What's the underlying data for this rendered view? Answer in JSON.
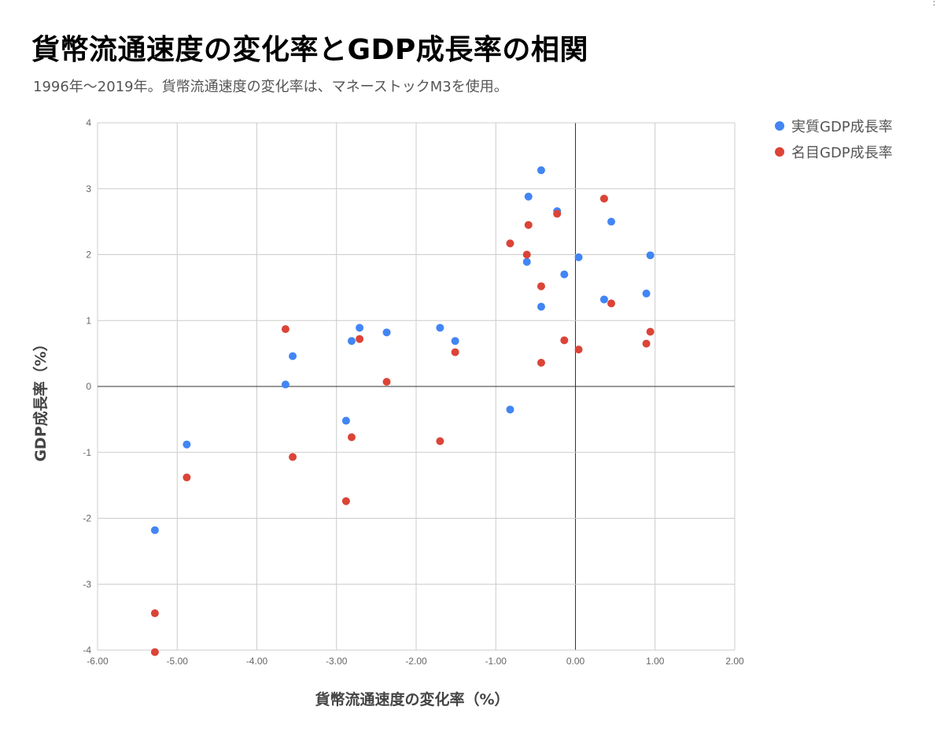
{
  "title": "貨幣流通速度の変化率とGDP成長率の相関",
  "subtitle": "1996年～2019年。貨幣流通速度の変化率は、マネーストックM3を使用。",
  "menu_icon": "more-vert-icon",
  "chart_data": {
    "type": "scatter",
    "title": "貨幣流通速度の変化率とGDP成長率の相関",
    "subtitle": "1996年～2019年。貨幣流通速度の変化率は、マネーストックM3を使用。",
    "xlabel": "貨幣流通速度の変化率（%）",
    "ylabel": "GDP成長率（%）",
    "xlim": [
      -6,
      2
    ],
    "ylim": [
      -4,
      4
    ],
    "xticks": [
      "-6.00",
      "-5.00",
      "-4.00",
      "-3.00",
      "-2.00",
      "-1.00",
      "0.00",
      "1.00",
      "2.00"
    ],
    "yticks": [
      "4",
      "3",
      "2",
      "1",
      "0",
      "-1",
      "-2",
      "-3",
      "-4"
    ],
    "grid": true,
    "legend_position": "right",
    "x": [
      -5.28,
      -4.88,
      -3.64,
      -3.55,
      -2.88,
      -2.81,
      -2.71,
      -2.37,
      -1.7,
      -1.51,
      -0.82,
      -0.61,
      -0.59,
      -0.43,
      -0.43,
      -0.23,
      -0.14,
      0.04,
      0.36,
      0.45,
      0.89,
      0.94
    ],
    "series": [
      {
        "name": "実質GDP成長率",
        "color": "#4285f4",
        "values": [
          -2.18,
          -0.88,
          0.03,
          0.46,
          -0.52,
          0.69,
          0.89,
          0.82,
          0.89,
          0.69,
          -0.35,
          1.89,
          2.88,
          3.28,
          1.21,
          2.66,
          1.7,
          1.96,
          1.32,
          2.5,
          1.41,
          1.99
        ]
      },
      {
        "name": "名目GDP成長率",
        "color": "#db4437",
        "values": [
          -3.44,
          -1.38,
          0.87,
          -1.07,
          -1.74,
          -0.77,
          0.72,
          0.07,
          -0.83,
          0.52,
          2.17,
          2.0,
          2.45,
          0.36,
          1.52,
          2.62,
          0.7,
          0.56,
          2.85,
          1.26,
          0.65,
          0.83
        ]
      }
    ],
    "extra_points": [
      {
        "series": "名目GDP成長率",
        "x": -5.28,
        "y": -4.03
      }
    ]
  }
}
